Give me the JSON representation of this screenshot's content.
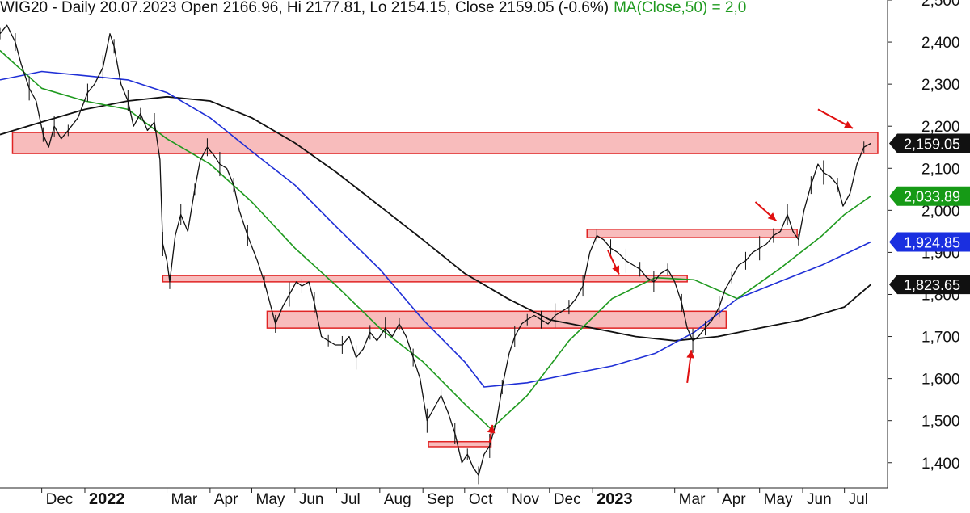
{
  "title": {
    "main": "WIG20 - Daily 20.07.2023 Open 2166.96, Hi 2177.81, Lo 2154.15, Close 2159.05 (-0.6%)",
    "ma": "MA(Close,50) = 2,0"
  },
  "colors": {
    "price": "#111111",
    "ma50": "#1f9a1f",
    "ma100": "#1f2fd6",
    "ma200": "#111111",
    "zone_fill": "#f6a6a6",
    "zone_stroke": "#e02424",
    "arrow": "#e01010",
    "badge_price": "#111111",
    "badge_ma50": "#169a16",
    "badge_ma100": "#1a2fe0",
    "badge_ma200": "#111111"
  },
  "badges": [
    {
      "label": "2,159.05",
      "value": 2159.05,
      "color_key": "badge_price"
    },
    {
      "label": "2,033.89",
      "value": 2033.89,
      "color_key": "badge_ma50"
    },
    {
      "label": "1,924.85",
      "value": 1924.85,
      "color_key": "badge_ma100"
    },
    {
      "label": "1,823.65",
      "value": 1823.65,
      "color_key": "badge_ma200"
    }
  ],
  "chart_data": {
    "type": "line",
    "ylim": [
      1340,
      2500
    ],
    "xlim": [
      "2021-11-01",
      "2023-08-01"
    ],
    "y_ticks": [
      {
        "label": "2,500",
        "value": 2500
      },
      {
        "label": "2,400",
        "value": 2400
      },
      {
        "label": "2,300",
        "value": 2300
      },
      {
        "label": "2,200",
        "value": 2200
      },
      {
        "label": "2,100",
        "value": 2100
      },
      {
        "label": "2,000",
        "value": 2000
      },
      {
        "label": "1,900",
        "value": 1900
      },
      {
        "label": "1,800",
        "value": 1800
      },
      {
        "label": "1,700",
        "value": 1700
      },
      {
        "label": "1,600",
        "value": 1600
      },
      {
        "label": "1,500",
        "value": 1500
      },
      {
        "label": "1,400",
        "value": 1400
      }
    ],
    "x_ticks": [
      {
        "label": "Dec",
        "date": "2021-12-01",
        "bold": false
      },
      {
        "label": "2022",
        "date": "2022-01-01",
        "bold": true
      },
      {
        "label": "Mar",
        "date": "2022-03-01",
        "bold": false
      },
      {
        "label": "Apr",
        "date": "2022-04-01",
        "bold": false
      },
      {
        "label": "May",
        "date": "2022-05-01",
        "bold": false
      },
      {
        "label": "Jun",
        "date": "2022-06-01",
        "bold": false
      },
      {
        "label": "Jul",
        "date": "2022-07-01",
        "bold": false
      },
      {
        "label": "Aug",
        "date": "2022-08-01",
        "bold": false
      },
      {
        "label": "Sep",
        "date": "2022-09-01",
        "bold": false
      },
      {
        "label": "Oct",
        "date": "2022-10-01",
        "bold": false
      },
      {
        "label": "Nov",
        "date": "2022-11-01",
        "bold": false
      },
      {
        "label": "Dec",
        "date": "2022-12-01",
        "bold": false
      },
      {
        "label": "2023",
        "date": "2023-01-01",
        "bold": true
      },
      {
        "label": "Mar",
        "date": "2023-03-01",
        "bold": false
      },
      {
        "label": "Apr",
        "date": "2023-04-01",
        "bold": false
      },
      {
        "label": "May",
        "date": "2023-05-01",
        "bold": false
      },
      {
        "label": "Jun",
        "date": "2023-06-01",
        "bold": false
      },
      {
        "label": "Jul",
        "date": "2023-07-01",
        "bold": false
      }
    ],
    "series": [
      {
        "key": "price",
        "points": [
          [
            "2021-11-01",
            2420
          ],
          [
            "2021-11-06",
            2440
          ],
          [
            "2021-11-12",
            2400
          ],
          [
            "2021-11-16",
            2350
          ],
          [
            "2021-11-22",
            2290
          ],
          [
            "2021-11-27",
            2260
          ],
          [
            "2021-12-02",
            2180
          ],
          [
            "2021-12-06",
            2150
          ],
          [
            "2021-12-10",
            2200
          ],
          [
            "2021-12-15",
            2170
          ],
          [
            "2021-12-20",
            2190
          ],
          [
            "2021-12-27",
            2220
          ],
          [
            "2022-01-03",
            2280
          ],
          [
            "2022-01-08",
            2300
          ],
          [
            "2022-01-14",
            2340
          ],
          [
            "2022-01-19",
            2420
          ],
          [
            "2022-01-22",
            2390
          ],
          [
            "2022-01-27",
            2300
          ],
          [
            "2022-02-01",
            2260
          ],
          [
            "2022-02-05",
            2200
          ],
          [
            "2022-02-10",
            2230
          ],
          [
            "2022-02-15",
            2190
          ],
          [
            "2022-02-20",
            2210
          ],
          [
            "2022-02-24",
            2120
          ],
          [
            "2022-02-26",
            1920
          ],
          [
            "2022-03-01",
            1880
          ],
          [
            "2022-03-03",
            1830
          ],
          [
            "2022-03-07",
            1940
          ],
          [
            "2022-03-11",
            1990
          ],
          [
            "2022-03-16",
            1950
          ],
          [
            "2022-03-21",
            2050
          ],
          [
            "2022-03-25",
            2120
          ],
          [
            "2022-03-30",
            2150
          ],
          [
            "2022-04-04",
            2130
          ],
          [
            "2022-04-08",
            2110
          ],
          [
            "2022-04-13",
            2100
          ],
          [
            "2022-04-18",
            2060
          ],
          [
            "2022-04-22",
            2000
          ],
          [
            "2022-04-28",
            1940
          ],
          [
            "2022-05-05",
            1880
          ],
          [
            "2022-05-10",
            1830
          ],
          [
            "2022-05-14",
            1780
          ],
          [
            "2022-05-18",
            1730
          ],
          [
            "2022-05-23",
            1770
          ],
          [
            "2022-05-28",
            1800
          ],
          [
            "2022-06-02",
            1830
          ],
          [
            "2022-06-06",
            1820
          ],
          [
            "2022-06-11",
            1830
          ],
          [
            "2022-06-15",
            1780
          ],
          [
            "2022-06-20",
            1700
          ],
          [
            "2022-06-25",
            1690
          ],
          [
            "2022-06-30",
            1680
          ],
          [
            "2022-07-05",
            1680
          ],
          [
            "2022-07-10",
            1700
          ],
          [
            "2022-07-15",
            1650
          ],
          [
            "2022-07-20",
            1670
          ],
          [
            "2022-07-25",
            1710
          ],
          [
            "2022-07-30",
            1690
          ],
          [
            "2022-08-05",
            1720
          ],
          [
            "2022-08-10",
            1700
          ],
          [
            "2022-08-15",
            1730
          ],
          [
            "2022-08-20",
            1700
          ],
          [
            "2022-08-25",
            1650
          ],
          [
            "2022-08-30",
            1600
          ],
          [
            "2022-09-04",
            1500
          ],
          [
            "2022-09-09",
            1530
          ],
          [
            "2022-09-14",
            1560
          ],
          [
            "2022-09-19",
            1520
          ],
          [
            "2022-09-24",
            1470
          ],
          [
            "2022-09-29",
            1400
          ],
          [
            "2022-10-03",
            1420
          ],
          [
            "2022-10-07",
            1390
          ],
          [
            "2022-10-11",
            1370
          ],
          [
            "2022-10-15",
            1420
          ],
          [
            "2022-10-19",
            1440
          ],
          [
            "2022-10-24",
            1500
          ],
          [
            "2022-10-28",
            1580
          ],
          [
            "2022-11-02",
            1660
          ],
          [
            "2022-11-06",
            1700
          ],
          [
            "2022-11-11",
            1730
          ],
          [
            "2022-11-15",
            1740
          ],
          [
            "2022-11-20",
            1750
          ],
          [
            "2022-11-25",
            1740
          ],
          [
            "2022-11-30",
            1730
          ],
          [
            "2022-12-05",
            1750
          ],
          [
            "2022-12-10",
            1760
          ],
          [
            "2022-12-15",
            1770
          ],
          [
            "2022-12-20",
            1790
          ],
          [
            "2022-12-25",
            1820
          ],
          [
            "2022-12-30",
            1900
          ],
          [
            "2023-01-04",
            1940
          ],
          [
            "2023-01-09",
            1930
          ],
          [
            "2023-01-14",
            1910
          ],
          [
            "2023-01-19",
            1900
          ],
          [
            "2023-01-25",
            1880
          ],
          [
            "2023-01-30",
            1870
          ],
          [
            "2023-02-04",
            1860
          ],
          [
            "2023-02-09",
            1840
          ],
          [
            "2023-02-14",
            1830
          ],
          [
            "2023-02-19",
            1850
          ],
          [
            "2023-02-24",
            1860
          ],
          [
            "2023-03-01",
            1830
          ],
          [
            "2023-03-06",
            1780
          ],
          [
            "2023-03-10",
            1720
          ],
          [
            "2023-03-14",
            1690
          ],
          [
            "2023-03-18",
            1700
          ],
          [
            "2023-03-23",
            1720
          ],
          [
            "2023-03-28",
            1740
          ],
          [
            "2023-04-02",
            1770
          ],
          [
            "2023-04-06",
            1810
          ],
          [
            "2023-04-11",
            1840
          ],
          [
            "2023-04-16",
            1870
          ],
          [
            "2023-04-21",
            1880
          ],
          [
            "2023-04-26",
            1900
          ],
          [
            "2023-05-01",
            1910
          ],
          [
            "2023-05-06",
            1920
          ],
          [
            "2023-05-11",
            1940
          ],
          [
            "2023-05-16",
            1950
          ],
          [
            "2023-05-21",
            1990
          ],
          [
            "2023-05-25",
            1950
          ],
          [
            "2023-05-29",
            1930
          ],
          [
            "2023-06-02",
            2000
          ],
          [
            "2023-06-07",
            2060
          ],
          [
            "2023-06-12",
            2110
          ],
          [
            "2023-06-16",
            2090
          ],
          [
            "2023-06-21",
            2080
          ],
          [
            "2023-06-26",
            2060
          ],
          [
            "2023-06-30",
            2010
          ],
          [
            "2023-07-05",
            2040
          ],
          [
            "2023-07-10",
            2110
          ],
          [
            "2023-07-15",
            2150
          ],
          [
            "2023-07-20",
            2159.05
          ]
        ]
      },
      {
        "key": "ma50",
        "points": [
          [
            "2021-11-01",
            2380
          ],
          [
            "2021-12-01",
            2290
          ],
          [
            "2022-01-01",
            2260
          ],
          [
            "2022-02-01",
            2240
          ],
          [
            "2022-03-01",
            2170
          ],
          [
            "2022-04-01",
            2110
          ],
          [
            "2022-05-01",
            2020
          ],
          [
            "2022-06-01",
            1910
          ],
          [
            "2022-07-01",
            1820
          ],
          [
            "2022-08-01",
            1720
          ],
          [
            "2022-09-01",
            1640
          ],
          [
            "2022-10-01",
            1540
          ],
          [
            "2022-10-20",
            1480
          ],
          [
            "2022-11-15",
            1560
          ],
          [
            "2022-12-15",
            1690
          ],
          [
            "2023-01-15",
            1790
          ],
          [
            "2023-02-15",
            1840
          ],
          [
            "2023-03-15",
            1835
          ],
          [
            "2023-04-15",
            1790
          ],
          [
            "2023-05-15",
            1860
          ],
          [
            "2023-06-15",
            1940
          ],
          [
            "2023-07-01",
            1990
          ],
          [
            "2023-07-20",
            2033.89
          ]
        ]
      },
      {
        "key": "ma100",
        "points": [
          [
            "2021-11-01",
            2310
          ],
          [
            "2021-12-01",
            2330
          ],
          [
            "2022-01-01",
            2320
          ],
          [
            "2022-02-01",
            2310
          ],
          [
            "2022-03-01",
            2280
          ],
          [
            "2022-04-01",
            2220
          ],
          [
            "2022-05-01",
            2140
          ],
          [
            "2022-06-01",
            2060
          ],
          [
            "2022-07-01",
            1960
          ],
          [
            "2022-08-01",
            1860
          ],
          [
            "2022-09-01",
            1740
          ],
          [
            "2022-10-01",
            1640
          ],
          [
            "2022-10-15",
            1580
          ],
          [
            "2022-11-15",
            1590
          ],
          [
            "2022-12-15",
            1610
          ],
          [
            "2023-01-15",
            1630
          ],
          [
            "2023-02-15",
            1660
          ],
          [
            "2023-03-15",
            1710
          ],
          [
            "2023-04-15",
            1790
          ],
          [
            "2023-05-15",
            1830
          ],
          [
            "2023-06-15",
            1870
          ],
          [
            "2023-07-20",
            1924.85
          ]
        ]
      },
      {
        "key": "ma200",
        "points": [
          [
            "2021-11-01",
            2180
          ],
          [
            "2021-12-01",
            2210
          ],
          [
            "2022-01-01",
            2240
          ],
          [
            "2022-02-01",
            2260
          ],
          [
            "2022-03-01",
            2270
          ],
          [
            "2022-04-01",
            2260
          ],
          [
            "2022-05-01",
            2220
          ],
          [
            "2022-06-01",
            2160
          ],
          [
            "2022-07-01",
            2090
          ],
          [
            "2022-08-01",
            2010
          ],
          [
            "2022-09-01",
            1930
          ],
          [
            "2022-10-01",
            1850
          ],
          [
            "2022-11-01",
            1790
          ],
          [
            "2022-12-01",
            1740
          ],
          [
            "2023-01-01",
            1720
          ],
          [
            "2023-02-01",
            1700
          ],
          [
            "2023-03-01",
            1690
          ],
          [
            "2023-04-01",
            1700
          ],
          [
            "2023-05-01",
            1720
          ],
          [
            "2023-06-01",
            1740
          ],
          [
            "2023-07-01",
            1770
          ],
          [
            "2023-07-20",
            1823.65
          ]
        ]
      }
    ],
    "zones": [
      {
        "name": "zone-2160",
        "x0": "2021-11-10",
        "x1": "2023-07-25",
        "y_low": 2135,
        "y_high": 2185
      },
      {
        "name": "zone-1950",
        "x0": "2022-12-28",
        "x1": "2023-05-28",
        "y_low": 1935,
        "y_high": 1955
      },
      {
        "name": "zone-1840",
        "x0": "2022-02-26",
        "x1": "2023-03-10",
        "y_low": 1830,
        "y_high": 1845
      },
      {
        "name": "zone-1740",
        "x0": "2022-05-12",
        "x1": "2023-04-07",
        "y_low": 1720,
        "y_high": 1760
      },
      {
        "name": "zone-1445",
        "x0": "2022-09-05",
        "x1": "2022-10-20",
        "y_low": 1438,
        "y_high": 1450
      }
    ],
    "arrows": [
      {
        "name": "arrow-oct-up",
        "from": [
          "2022-10-19",
          1448
        ],
        "to": [
          "2022-10-21",
          1490
        ]
      },
      {
        "name": "arrow-jan-down",
        "from": [
          "2023-01-12",
          1905
        ],
        "to": [
          "2023-01-20",
          1848
        ]
      },
      {
        "name": "arrow-mar-up",
        "from": [
          "2023-03-10",
          1590
        ],
        "to": [
          "2023-03-13",
          1668
        ]
      },
      {
        "name": "arrow-may-down",
        "from": [
          "2023-04-28",
          2020
        ],
        "to": [
          "2023-05-13",
          1975
        ]
      },
      {
        "name": "arrow-jul-down",
        "from": [
          "2023-06-12",
          2240
        ],
        "to": [
          "2023-07-07",
          2195
        ]
      }
    ]
  }
}
